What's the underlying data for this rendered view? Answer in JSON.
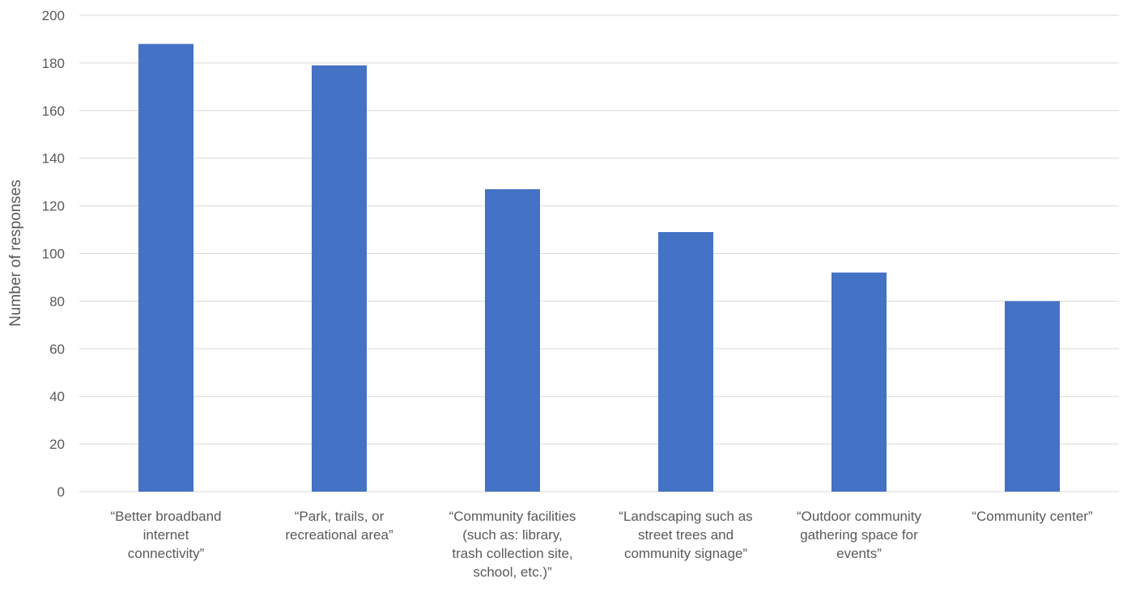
{
  "chart_data": {
    "type": "bar",
    "categories": [
      "“Better broadband internet connectivity”",
      "“Park, trails, or recreational area”",
      "“Community facilities (such as: library, trash collection site, school, etc.)”",
      "“Landscaping such as street trees and community signage”",
      "“Outdoor community gathering space for events”",
      "“Community center”"
    ],
    "category_lines": [
      [
        "“Better broadband",
        "internet",
        "connectivity”"
      ],
      [
        "“Park, trails, or",
        "recreational area”"
      ],
      [
        "“Community facilities",
        "(such as: library,",
        "trash collection site,",
        "school, etc.)”"
      ],
      [
        "“Landscaping such as",
        "street trees and",
        "community signage”"
      ],
      [
        "“Outdoor community",
        "gathering space for",
        "events”"
      ],
      [
        "“Community center”"
      ]
    ],
    "values": [
      188,
      179,
      127,
      109,
      92,
      80
    ],
    "title": "",
    "xlabel": "",
    "ylabel": "Number of responses",
    "ylim": [
      0,
      200
    ],
    "yticks": [
      0,
      20,
      40,
      60,
      80,
      100,
      120,
      140,
      160,
      180,
      200
    ],
    "grid": true,
    "legend": "none",
    "bar_color": "#4472c4",
    "grid_color": "#d9d9d9",
    "text_color": "#595959"
  }
}
